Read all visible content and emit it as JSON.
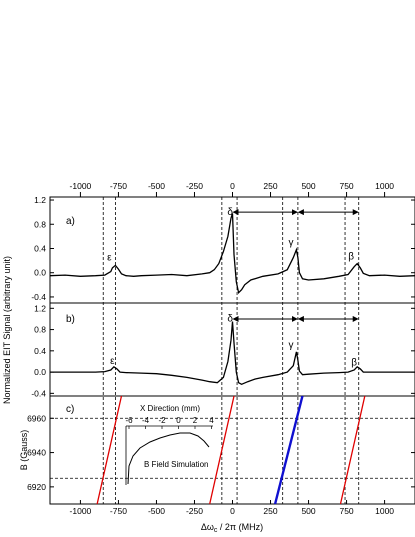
{
  "chart_data": {
    "type": "line",
    "x_axis": {
      "label_main": "Δω",
      "label_sub": "c",
      "label_rest": " / 2π (MHz)",
      "range": [
        -1200,
        1200
      ],
      "tick_values": [
        -1000,
        -750,
        -500,
        -250,
        0,
        250,
        500,
        750,
        1000
      ],
      "tick_labels": [
        "-1000",
        "-750",
        "-500",
        "-250",
        "0",
        "250",
        "500",
        "750",
        "1000"
      ],
      "top_tick_labels": [
        "-1000",
        "-750",
        "-500",
        "-250",
        "0",
        "250",
        "500",
        "750",
        "1000"
      ]
    },
    "y_label_shared": "Normalized EIT Signal (arbitrary unit)",
    "panel_a": {
      "label": "a)",
      "ylim": [
        -0.5,
        1.25
      ],
      "tick_values": [
        -0.4,
        0.0,
        0.4,
        0.8,
        1.2
      ],
      "tick_labels": [
        "-0.4",
        "0.0",
        "0.4",
        "0.8",
        "1.2"
      ],
      "curve_x": [
        -1200,
        -1100,
        -1000,
        -900,
        -840,
        -800,
        -790,
        -770,
        -750,
        -730,
        -700,
        -650,
        -600,
        -500,
        -400,
        -300,
        -200,
        -150,
        -120,
        -90,
        -60,
        -30,
        -10,
        0,
        10,
        25,
        40,
        60,
        80,
        120,
        200,
        300,
        360,
        400,
        420,
        430,
        440,
        460,
        500,
        600,
        700,
        760,
        800,
        820,
        840,
        860,
        900,
        1000,
        1100,
        1200
      ],
      "curve_y": [
        -0.05,
        -0.04,
        -0.06,
        -0.05,
        -0.04,
        0.02,
        0.08,
        0.12,
        0.06,
        -0.02,
        -0.05,
        -0.06,
        -0.05,
        -0.04,
        -0.03,
        -0.05,
        -0.02,
        0.0,
        0.05,
        0.15,
        0.35,
        0.6,
        0.9,
        0.98,
        0.3,
        -0.15,
        -0.33,
        -0.28,
        -0.2,
        -0.12,
        -0.06,
        -0.02,
        0.05,
        0.25,
        0.38,
        0.25,
        0.0,
        -0.1,
        -0.12,
        -0.1,
        -0.06,
        -0.03,
        0.1,
        0.15,
        0.08,
        -0.01,
        -0.05,
        -0.04,
        -0.06,
        -0.05
      ],
      "annotations": [
        {
          "text": "ε",
          "x": -810,
          "y": 0.2
        },
        {
          "text": "δ",
          "x": -15,
          "y": 0.95
        },
        {
          "text": "γ",
          "x": 385,
          "y": 0.45
        },
        {
          "text": "β",
          "x": 780,
          "y": 0.22
        }
      ]
    },
    "panel_b": {
      "label": "b)",
      "ylim": [
        -0.45,
        1.3
      ],
      "tick_values": [
        -0.4,
        0.0,
        0.4,
        0.8,
        1.2
      ],
      "tick_labels": [
        "-0.4",
        "0.0",
        "0.4",
        "0.8",
        "1.2"
      ],
      "curve_x": [
        -1200,
        -1000,
        -900,
        -840,
        -800,
        -780,
        -760,
        -740,
        -700,
        -600,
        -500,
        -400,
        -300,
        -200,
        -150,
        -100,
        -60,
        -30,
        -10,
        0,
        10,
        25,
        40,
        60,
        100,
        150,
        200,
        300,
        360,
        400,
        420,
        430,
        440,
        460,
        500,
        600,
        700,
        760,
        800,
        820,
        840,
        860,
        900,
        1000,
        1100,
        1200
      ],
      "curve_y": [
        0.0,
        0.0,
        0.0,
        0.01,
        0.04,
        0.1,
        0.06,
        0.0,
        -0.01,
        -0.02,
        -0.03,
        -0.06,
        -0.1,
        -0.15,
        -0.18,
        -0.2,
        -0.1,
        0.2,
        0.6,
        0.95,
        0.55,
        0.0,
        -0.2,
        -0.23,
        -0.18,
        -0.13,
        -0.1,
        -0.05,
        0.0,
        0.12,
        0.38,
        0.22,
        0.02,
        -0.05,
        -0.04,
        -0.02,
        -0.01,
        0.0,
        0.04,
        0.1,
        0.06,
        0.0,
        0.0,
        0.0,
        0.0,
        0.0
      ],
      "annotations": [
        {
          "text": "ε",
          "x": -790,
          "y": 0.15
        },
        {
          "text": "δ",
          "x": -15,
          "y": 0.95
        },
        {
          "text": "γ",
          "x": 385,
          "y": 0.45
        },
        {
          "text": "β",
          "x": 800,
          "y": 0.12
        }
      ]
    },
    "panel_c": {
      "label": "c)",
      "ylabel": "B (Gauss)",
      "ylim": [
        6910,
        6973
      ],
      "tick_values": [
        6920,
        6940,
        6960
      ],
      "tick_labels": [
        "6920",
        "6940",
        "6960"
      ],
      "hlines": [
        6960,
        6925
      ],
      "lines": [
        {
          "color": "#e00000",
          "points": [
            [
              -890,
              6910
            ],
            [
              -730,
              6973
            ]
          ]
        },
        {
          "color": "#e00000",
          "points": [
            [
              -150,
              6910
            ],
            [
              10,
              6973
            ]
          ]
        },
        {
          "color": "#1010d0",
          "points": [
            [
              280,
              6910
            ],
            [
              460,
              6973
            ]
          ]
        },
        {
          "color": "#e00000",
          "points": [
            [
              710,
              6910
            ],
            [
              870,
              6973
            ]
          ]
        }
      ],
      "inset": {
        "title": "X Direction (mm)",
        "tick_labels": [
          "-6",
          "-4",
          "-2",
          "0",
          "2",
          "4"
        ],
        "label": "B Field Simulation"
      }
    },
    "vlines": [
      -850,
      -770,
      -70,
      30,
      330,
      430,
      740,
      830
    ],
    "arrows": [
      [
        0,
        430
      ],
      [
        430,
        830
      ]
    ],
    "colors": {
      "curve": "#000000",
      "red": "#e00000",
      "blue": "#1010d0"
    }
  }
}
